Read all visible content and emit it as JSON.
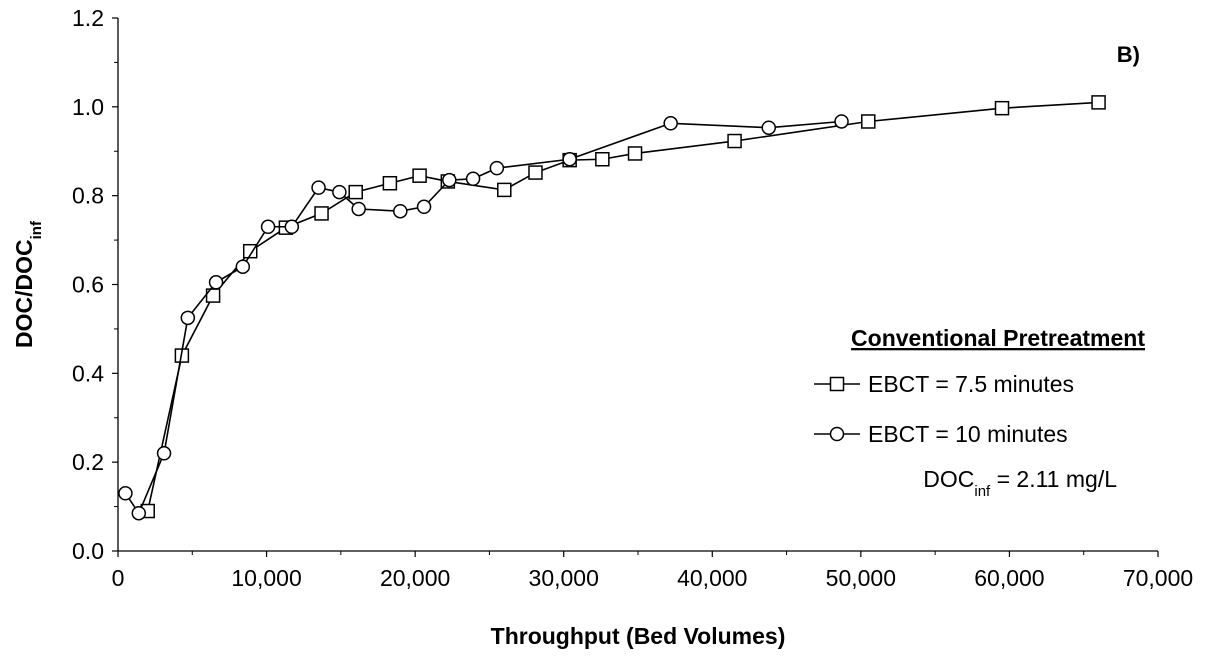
{
  "chart_data": {
    "type": "line",
    "panel_label": "B)",
    "xlabel": "Throughput (Bed Volumes)",
    "ylabel": {
      "main": "DOC/DOC",
      "sub": "inf"
    },
    "xlim": [
      0,
      70000
    ],
    "ylim": [
      0,
      1.2
    ],
    "x_ticks": [
      0,
      10000,
      20000,
      30000,
      40000,
      50000,
      60000,
      70000
    ],
    "x_tick_labels": [
      "0",
      "10,000",
      "20,000",
      "30,000",
      "40,000",
      "50,000",
      "60,000",
      "70,000"
    ],
    "y_ticks": [
      0,
      0.2,
      0.4,
      0.6,
      0.8,
      1.0,
      1.2
    ],
    "y_tick_labels": [
      "0.0",
      "0.2",
      "0.4",
      "0.6",
      "0.8",
      "1.0",
      "1.2"
    ],
    "grid": false,
    "legend_position": "right",
    "legend": {
      "title": "Conventional Pretreatment",
      "note": {
        "main": "DOC",
        "sub": "inf",
        "rest": " = 2.11 mg/L"
      }
    },
    "colors": {
      "line": "#000000",
      "marker_fill": "#ffffff",
      "axis": "#000000"
    },
    "series": [
      {
        "name": "EBCT = 7.5 minutes",
        "marker": "square",
        "x": [
          2000,
          4300,
          6400,
          8900,
          11300,
          13700,
          16000,
          18300,
          20300,
          22200,
          26000,
          28100,
          30400,
          32600,
          34800,
          41500,
          50500,
          59500,
          66000
        ],
        "y": [
          0.09,
          0.44,
          0.575,
          0.675,
          0.728,
          0.76,
          0.808,
          0.828,
          0.845,
          0.832,
          0.813,
          0.852,
          0.88,
          0.882,
          0.895,
          0.923,
          0.967,
          0.997,
          1.01
        ]
      },
      {
        "name": "EBCT = 10 minutes",
        "marker": "circle",
        "x": [
          500,
          1400,
          3100,
          4700,
          6600,
          8400,
          10100,
          11700,
          13500,
          14900,
          16200,
          19000,
          20600,
          22300,
          23900,
          25500,
          30400,
          37200,
          43800,
          48700
        ],
        "y": [
          0.13,
          0.085,
          0.22,
          0.525,
          0.605,
          0.64,
          0.73,
          0.73,
          0.818,
          0.808,
          0.77,
          0.765,
          0.775,
          0.835,
          0.838,
          0.862,
          0.882,
          0.963,
          0.953,
          0.967
        ]
      }
    ]
  }
}
